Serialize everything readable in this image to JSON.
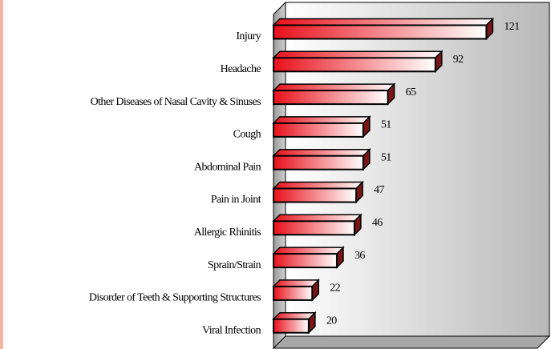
{
  "chart_data": {
    "type": "bar",
    "orientation": "horizontal",
    "categories": [
      "Injury",
      "Headache",
      "Other Diseases of Nasal Cavity & Sinuses",
      "Cough",
      "Abdominal Pain",
      "Pain in Joint",
      "Allergic Rhinitis",
      "Sprain/Strain",
      "Disorder of Teeth & Supporting Structures",
      "Viral Infection"
    ],
    "values": [
      121,
      92,
      65,
      51,
      51,
      47,
      46,
      36,
      22,
      20
    ],
    "color": "#e8101a",
    "xlim": [
      0,
      150
    ]
  }
}
